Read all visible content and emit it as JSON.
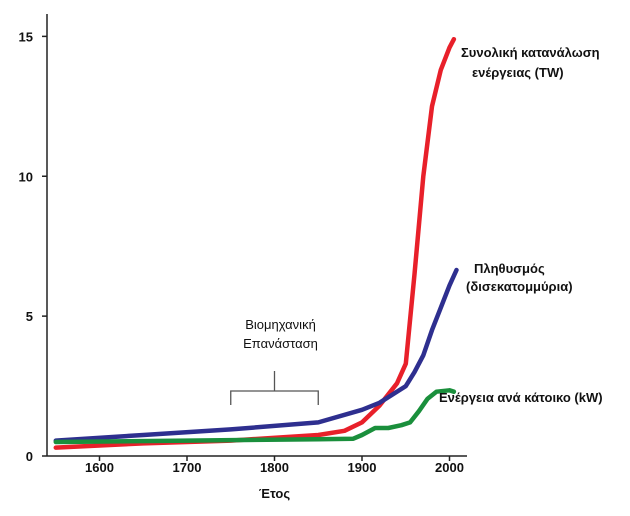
{
  "chart_data": {
    "type": "line",
    "title": "",
    "xlabel": "Έτος",
    "ylabel": "",
    "xlim": [
      1540,
      2020
    ],
    "ylim": [
      0,
      15.8
    ],
    "x_ticks": [
      1600,
      1700,
      1800,
      1900,
      2000
    ],
    "y_ticks": [
      0,
      5,
      10,
      15
    ],
    "grid": false,
    "annotation": {
      "lines": [
        "Βιομηχανική",
        "Επανάσταση"
      ],
      "range": [
        1750,
        1850
      ]
    },
    "series": [
      {
        "name_lines": [
          "Συνολική κατανάλωση",
          "ενέργειας (TW)"
        ],
        "color": "#e8202a",
        "points": [
          [
            1550,
            0.3
          ],
          [
            1650,
            0.45
          ],
          [
            1750,
            0.55
          ],
          [
            1850,
            0.75
          ],
          [
            1880,
            0.9
          ],
          [
            1900,
            1.2
          ],
          [
            1920,
            1.8
          ],
          [
            1940,
            2.6
          ],
          [
            1950,
            3.3
          ],
          [
            1960,
            6.5
          ],
          [
            1970,
            10.0
          ],
          [
            1980,
            12.5
          ],
          [
            1990,
            13.8
          ],
          [
            2000,
            14.6
          ],
          [
            2005,
            14.9
          ]
        ]
      },
      {
        "name_lines": [
          "Πληθυσμός",
          "(δισεκατομμύρια)"
        ],
        "color": "#2e2f8f",
        "points": [
          [
            1550,
            0.55
          ],
          [
            1650,
            0.75
          ],
          [
            1750,
            0.95
          ],
          [
            1850,
            1.2
          ],
          [
            1900,
            1.65
          ],
          [
            1920,
            1.9
          ],
          [
            1950,
            2.5
          ],
          [
            1960,
            3.0
          ],
          [
            1970,
            3.6
          ],
          [
            1980,
            4.5
          ],
          [
            1990,
            5.3
          ],
          [
            2000,
            6.1
          ],
          [
            2008,
            6.65
          ]
        ]
      },
      {
        "name_lines": [
          "Ενέργεια ανά κάτοικο (kW)"
        ],
        "color": "#1a8f3c",
        "points": [
          [
            1550,
            0.5
          ],
          [
            1700,
            0.55
          ],
          [
            1850,
            0.6
          ],
          [
            1890,
            0.62
          ],
          [
            1900,
            0.75
          ],
          [
            1915,
            1.0
          ],
          [
            1930,
            1.0
          ],
          [
            1945,
            1.1
          ],
          [
            1955,
            1.2
          ],
          [
            1965,
            1.6
          ],
          [
            1975,
            2.05
          ],
          [
            1985,
            2.3
          ],
          [
            2000,
            2.35
          ],
          [
            2005,
            2.3
          ]
        ]
      }
    ]
  }
}
